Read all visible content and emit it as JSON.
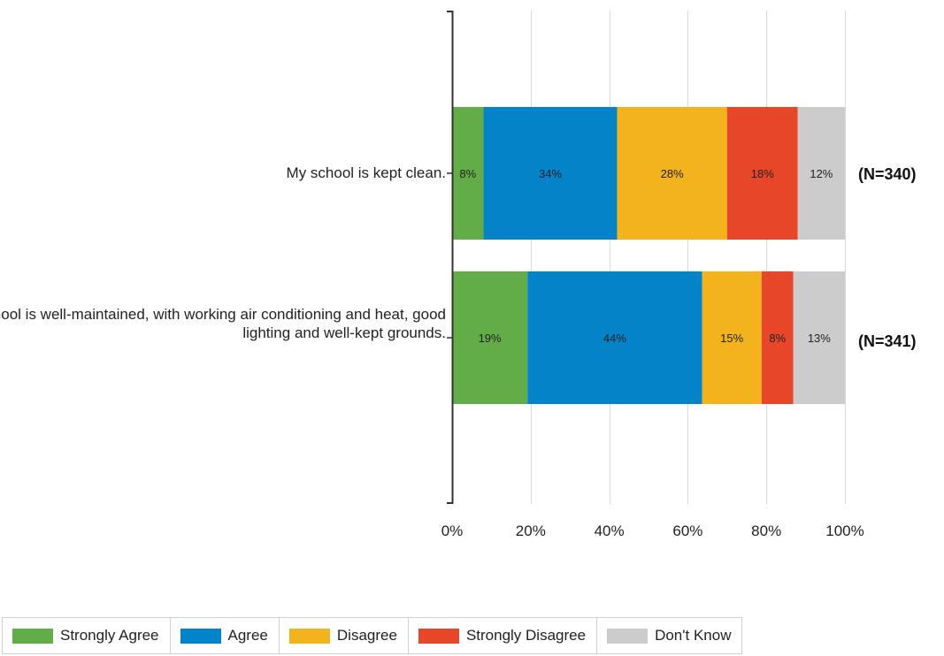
{
  "chart_data": {
    "type": "bar",
    "orientation": "horizontal",
    "stacked": true,
    "normalized": true,
    "categories": [
      "My school is kept clean.",
      "My school is well-maintained, with working air conditioning and heat, good lighting and well-kept grounds."
    ],
    "n_labels": [
      "(N=340)",
      "(N=341)"
    ],
    "series": [
      {
        "name": "Strongly Agree",
        "color": "#62ad47",
        "values": [
          8,
          19
        ],
        "labels": [
          "8%",
          "19%"
        ]
      },
      {
        "name": "Agree",
        "color": "#0583c8",
        "values": [
          34,
          44
        ],
        "labels": [
          "34%",
          "44%"
        ]
      },
      {
        "name": "Disagree",
        "color": "#f2b31d",
        "values": [
          28,
          15
        ],
        "labels": [
          "28%",
          "15%"
        ]
      },
      {
        "name": "Strongly Disagree",
        "color": "#e84628",
        "values": [
          18,
          8
        ],
        "labels": [
          "18%",
          "8%"
        ]
      },
      {
        "name": "Don't Know",
        "color": "#cccccc",
        "values": [
          12,
          13
        ],
        "labels": [
          "12%",
          "13%"
        ]
      }
    ],
    "xlim": [
      0,
      100
    ],
    "xticks": [
      "0%",
      "20%",
      "40%",
      "60%",
      "80%",
      "100%"
    ],
    "grid": true,
    "legend_position": "bottom",
    "title": "",
    "xlabel": "",
    "ylabel": ""
  }
}
